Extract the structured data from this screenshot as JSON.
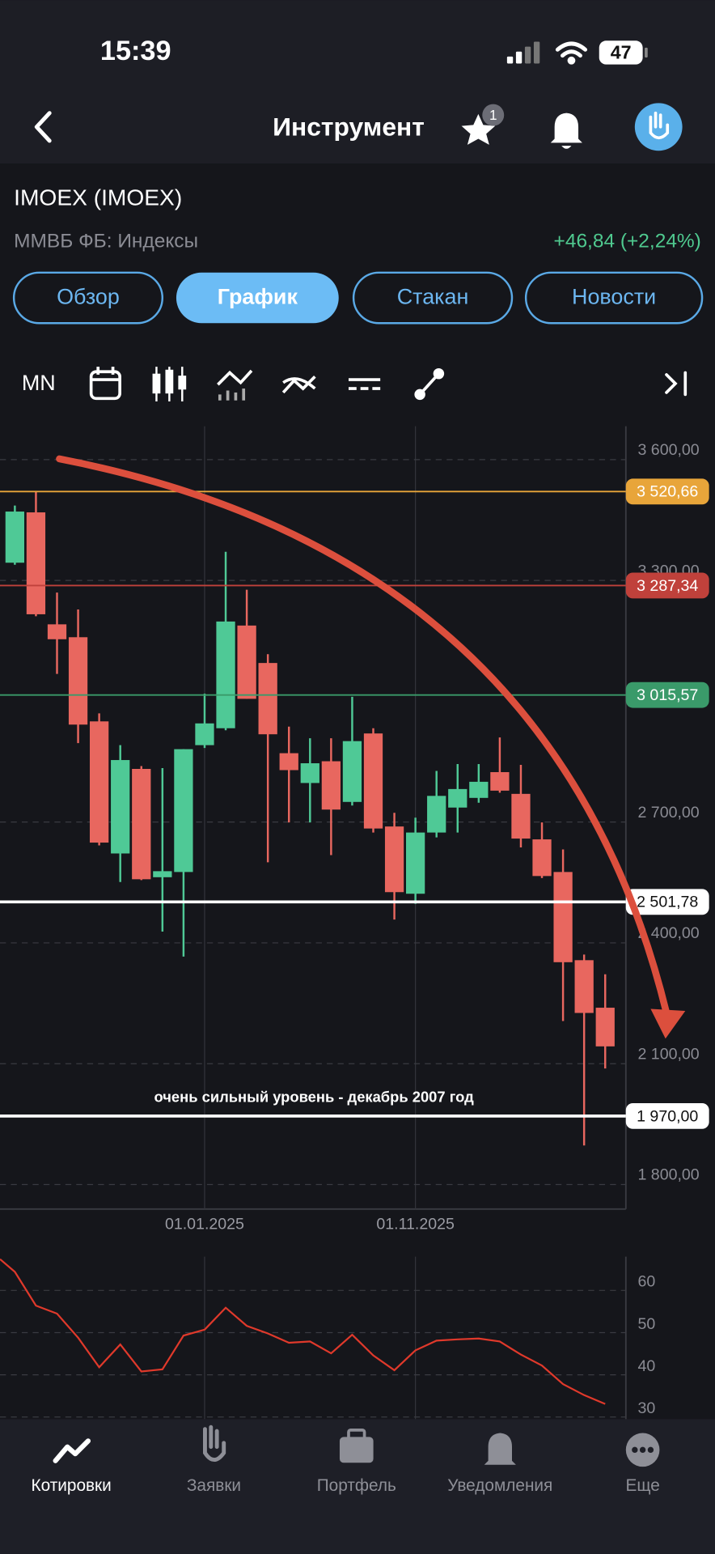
{
  "status_bar": {
    "time": "15:39",
    "battery": "47"
  },
  "header": {
    "title": "Инструмент",
    "favorites_badge": "1"
  },
  "instrument": {
    "name": "IMOEX (IMOEX)",
    "exchange": "ММВБ ФБ: Индексы",
    "change": "+46,84 (+2,24%)"
  },
  "tabs": {
    "items": [
      "Обзор",
      "График",
      "Стакан",
      "Новости"
    ],
    "active": 1
  },
  "toolbar": {
    "timeframe": "MN"
  },
  "chart_data": [
    {
      "type": "candlestick",
      "categories": [
        null,
        null,
        null,
        null,
        null,
        null,
        null,
        null,
        null,
        "01.01.2025",
        null,
        null,
        null,
        null,
        null,
        null,
        null,
        null,
        null,
        "01.11.2025",
        null,
        null,
        null,
        null,
        null,
        null,
        null,
        null,
        null
      ],
      "open": [
        3344,
        3469,
        3191,
        3159,
        2950,
        2622,
        2832,
        2563,
        2576,
        2891,
        2933,
        3188,
        3095,
        2871,
        2797,
        2851,
        2750,
        2920,
        2689,
        2522,
        2674,
        2736,
        2760,
        2824,
        2770,
        2657,
        2576,
        2357,
        2239
      ],
      "high": [
        3486,
        3521,
        3270,
        3228,
        2970,
        2891,
        2839,
        2834,
        2881,
        3019,
        3371,
        3277,
        3117,
        2937,
        2908,
        2908,
        3011,
        2933,
        2723,
        2711,
        2827,
        2844,
        2844,
        2910,
        2842,
        2699,
        2632,
        2371,
        2322
      ],
      "low": [
        3339,
        3211,
        3068,
        2896,
        2642,
        2551,
        2556,
        2428,
        2366,
        2884,
        2928,
        3006,
        2600,
        2699,
        2699,
        2618,
        2741,
        2674,
        2458,
        2497,
        2662,
        2674,
        2748,
        2773,
        2637,
        2561,
        2206,
        1897,
        2088
      ],
      "close": [
        3471,
        3216,
        3154,
        2942,
        2649,
        2854,
        2558,
        2578,
        2881,
        2945,
        3198,
        3006,
        2918,
        2829,
        2846,
        2731,
        2901,
        2684,
        2526,
        2674,
        2765,
        2782,
        2800,
        2778,
        2659,
        2566,
        2352,
        2226,
        2143
      ],
      "up_color": "#4fc996",
      "down_color": "#e8675f",
      "ylim": [
        1739,
        3683
      ],
      "yticks": [
        {
          "value": 3600,
          "label": "3 600,00"
        },
        {
          "value": 3300,
          "label": "3 300,00"
        },
        {
          "value": 2700,
          "label": "2 700,00"
        },
        {
          "value": 2400,
          "label": "2 400,00"
        },
        {
          "value": 2100,
          "label": "2 100,00"
        },
        {
          "value": 1800,
          "label": "1 800,00"
        }
      ],
      "grid": true,
      "levels": [
        {
          "value": 3520.66,
          "label": "3 520,66",
          "color": "#e8a53a"
        },
        {
          "value": 3287.34,
          "label": "3 287,34",
          "color": "#c0413b"
        },
        {
          "value": 3015.57,
          "label": "3 015,57",
          "color": "#3a9a6a"
        },
        {
          "value": 2501.78,
          "label": "2 501,78",
          "color": "#ffffff"
        },
        {
          "value": 1970,
          "label": "1 970,00",
          "color": "#ffffff"
        }
      ],
      "annotation": "очень сильный уровень - декабрь 2007 год"
    },
    {
      "type": "line",
      "color": "#e0392b",
      "values": [
        64.4,
        56.4,
        54.5,
        48.8,
        41.8,
        47.2,
        40.8,
        41.3,
        49.3,
        50.7,
        55.9,
        51.6,
        49.8,
        47.6,
        47.9,
        45.1,
        49.5,
        44.6,
        41.1,
        45.8,
        48.1,
        48.4,
        48.6,
        47.9,
        44.8,
        42.2,
        37.8,
        35.2,
        33.1
      ],
      "ylim": [
        29.5,
        68
      ],
      "yticks": [
        60,
        50,
        40,
        30
      ],
      "grid": true
    }
  ],
  "bottom_nav": {
    "items": [
      "Котировки",
      "Заявки",
      "Портфель",
      "Уведомления",
      "Еще"
    ],
    "active": 0
  }
}
